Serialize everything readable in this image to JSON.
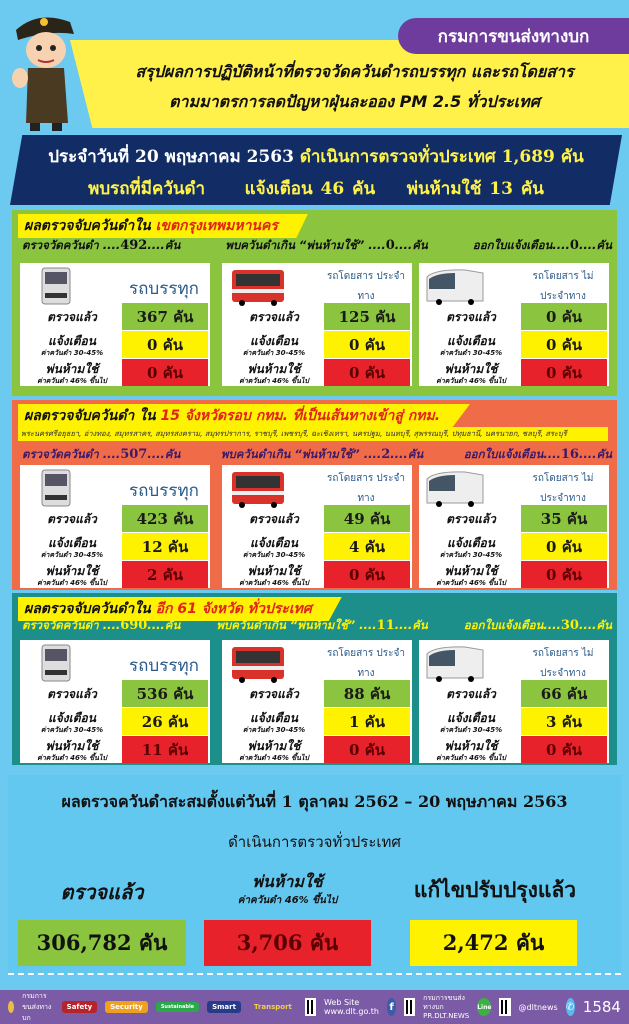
{
  "header": {
    "agency": "กรมการขนส่งทางบก",
    "title_line1": "สรุปผลการปฏิบัติหน้าที่ตรวจวัดควันดำรถบรรทุก และรถโดยสาร",
    "title_line2": "ตามมาตรการลดปัญหาฝุ่นละออง PM 2.5 ทั่วประเทศ"
  },
  "daily": {
    "date_text": "ประจำวันที่ 20 พฤษภาคม 2563",
    "checked_text": "ดำเนินการตรวจทั่วประเทศ 1,689 คัน",
    "found_label": "พบรถที่มีควันดำ",
    "warned_text": "แจ้งเตือน 46  คัน",
    "banned_text": "พ่นห้ามใช้  13  คัน"
  },
  "labels": {
    "checked": "ตรวจแล้ว",
    "warned": "แจ้งเตือน",
    "warned_sub": "ค่าควันดำ 30-45%",
    "banned": "พ่นห้ามใช้",
    "banned_sub": "ค่าควันดำ 46% ขึ้นไป",
    "unit": "คัน",
    "stat_measured": "ตรวจวัดควันดำ ....",
    "stat_banned": "พบควันดำเกิน “พ่นห้ามใช้” ....",
    "stat_warned": "ออกใบแจ้งเตือน....",
    "stat_unit": "....คัน"
  },
  "vehicle_types": [
    {
      "name": "รถบรรทุก",
      "icon": "truck-icon"
    },
    {
      "name": "รถโดยสาร ประจำทาง",
      "icon": "city-bus-icon"
    },
    {
      "name": "รถโดยสาร ไม่ประจำทาง",
      "icon": "coach-bus-icon"
    }
  ],
  "sections": [
    {
      "title": "ผลตรวจจับควันดำใน",
      "title_highlight": "เขตกรุงเทพมหานคร",
      "provinces": "",
      "measured": "492",
      "banned": "0",
      "warned": "0",
      "cards": [
        {
          "checked": "367",
          "warned": "0",
          "banned": "0"
        },
        {
          "checked": "125",
          "warned": "0",
          "banned": "0"
        },
        {
          "checked": "0",
          "warned": "0",
          "banned": "0"
        }
      ]
    },
    {
      "title": "ผลตรวจจับควันดำ ใน",
      "title_highlight": "15 จังหวัดรอบ กทม. ที่เป็นเส้นทางเข้าสู่ กทม.",
      "provinces": "พระนครศรีอยุธยา, อ่างทอง, สมุทรสาคร, สมุทรสงคราม, สมุทรปราการ, ราชบุรี, เพชรบุรี, ฉะเชิงเทรา, นครปฐม, นนทบุรี, สุพรรณบุรี, ปทุมธานี, นครนายก, ชลบุรี, สระบุรี",
      "measured": "507",
      "banned": "2",
      "warned": "16",
      "cards": [
        {
          "checked": "423",
          "warned": "12",
          "banned": "2"
        },
        {
          "checked": "49",
          "warned": "4",
          "banned": "0"
        },
        {
          "checked": "35",
          "warned": "0",
          "banned": "0"
        }
      ]
    },
    {
      "title": "ผลตรวจจับควันดำใน",
      "title_highlight": "อีก 61 จังหวัด ทั่วประเทศ",
      "provinces": "",
      "measured": "690",
      "banned": "11",
      "warned": "30",
      "cards": [
        {
          "checked": "536",
          "warned": "26",
          "banned": "11"
        },
        {
          "checked": "88",
          "warned": "1",
          "banned": "0"
        },
        {
          "checked": "66",
          "warned": "3",
          "banned": "0"
        }
      ]
    }
  ],
  "summary": {
    "line1": "ผลตรวจควันดำสะสมตั้งแต่วันที่  1 ตุลาคม 2562 – 20 พฤษภาคม 2563",
    "line2": "ดำเนินการตรวจทั่วประเทศ",
    "checked_label": "ตรวจแล้ว",
    "checked_value": "306,782 คัน",
    "banned_label": "พ่นห้ามใช้",
    "banned_sub": "ค่าควันดำ 46% ขึ้นไป",
    "banned_value": "3,706 คัน",
    "fixed_label": "แก้ไขปรับปรุงแล้ว",
    "fixed_value": "2,472 คัน"
  },
  "footer": {
    "agency": "กรมการขนส่งทางบก",
    "chips": [
      "Safety",
      "Security",
      "Sustainable",
      "Smart",
      "Transport"
    ],
    "website_label": "Web Site",
    "website": "www.dlt.go.th",
    "facebook_name": "กรมการขนส่งทางบก",
    "facebook_page": "PR.DLT.NEWS",
    "line_label": "Line",
    "line_id": "@dltnews",
    "hotline": "1584"
  },
  "colors": {
    "background": "#6ccaf0",
    "navy": "#122d66",
    "purple": "#6e3c9c",
    "section_bkk": "#8bc43f",
    "section_15": "#f06b47",
    "section_61": "#1c8f8a",
    "checked": "#8bc43f",
    "warned": "#fff200",
    "banned": "#e8222a"
  }
}
